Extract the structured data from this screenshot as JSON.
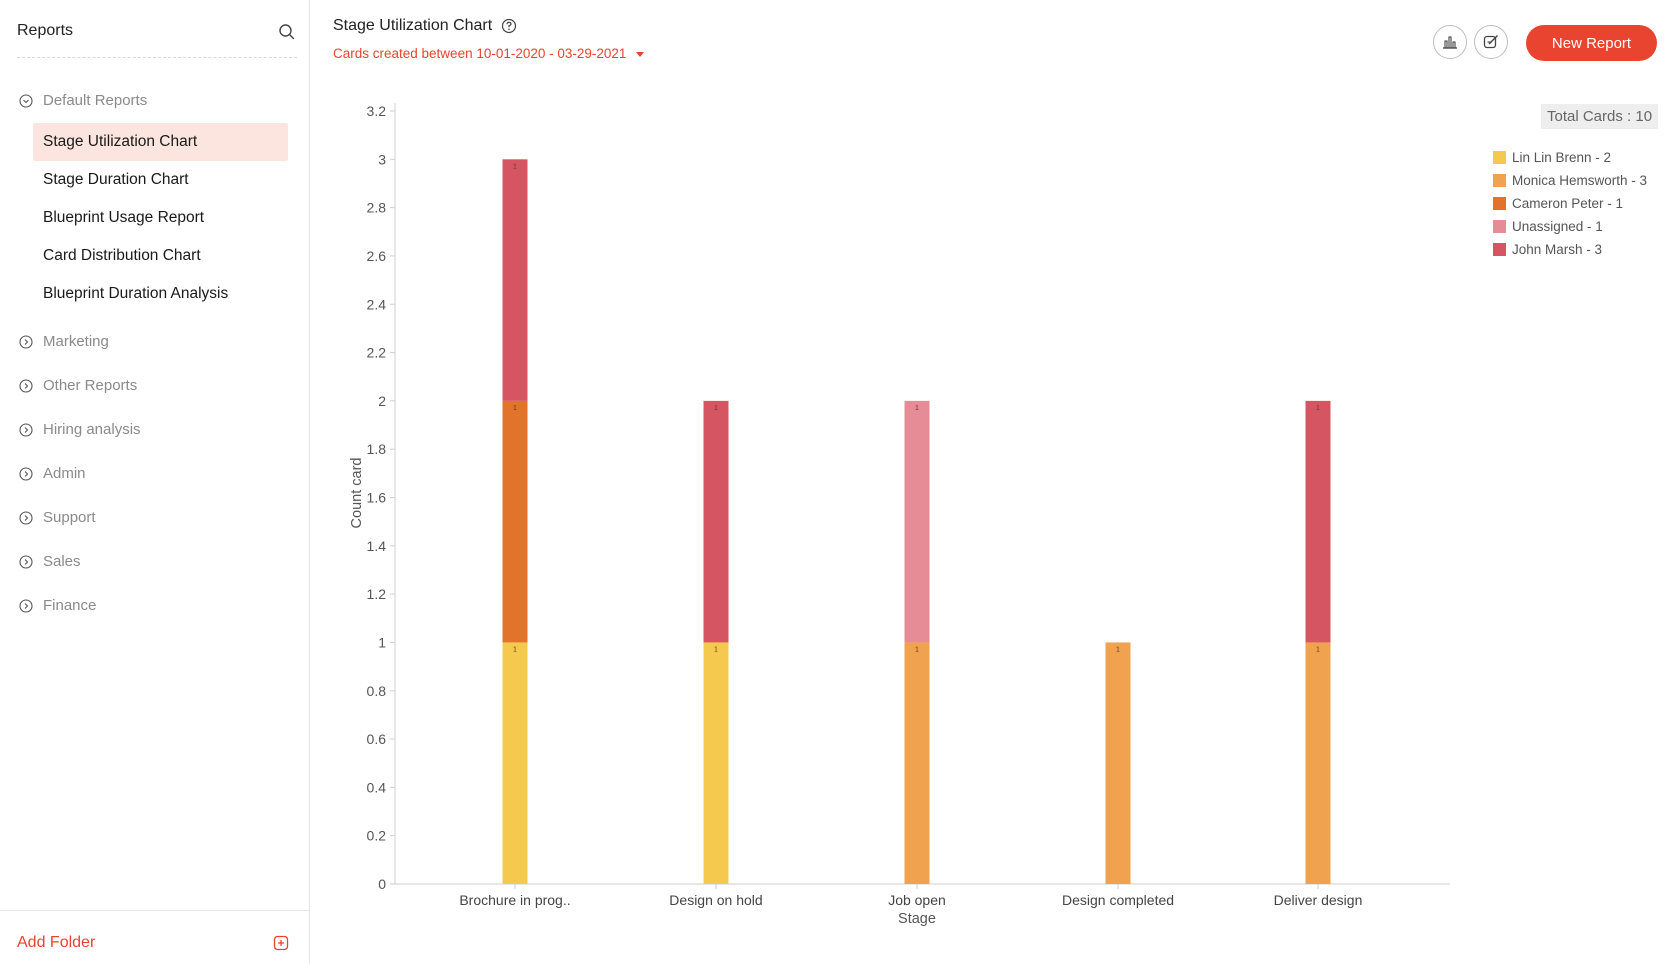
{
  "sidebar": {
    "title": "Reports",
    "default_folder": "Default Reports",
    "reports": [
      "Stage Utilization Chart",
      "Stage Duration Chart",
      "Blueprint Usage Report",
      "Card Distribution Chart",
      "Blueprint Duration Analysis"
    ],
    "folders": [
      "Marketing",
      "Other Reports",
      "Hiring analysis",
      "Admin",
      "Support",
      "Sales",
      "Finance"
    ],
    "add_folder": "Add Folder"
  },
  "header": {
    "title": "Stage Utilization Chart",
    "date_filter": "Cards created between 10-01-2020 - 03-29-2021",
    "new_report": "New Report"
  },
  "total_cards": "Total Cards : 10",
  "chart_data": {
    "type": "bar",
    "stacked": true,
    "title": "Stage Utilization Chart",
    "xlabel": "Stage",
    "ylabel": "Count card",
    "ylim": [
      0,
      3.2
    ],
    "yticks": [
      "0",
      "0.2",
      "0.4",
      "0.6",
      "0.8",
      "1",
      "1.2",
      "1.4",
      "1.6",
      "1.8",
      "2",
      "2.2",
      "2.4",
      "2.6",
      "2.8",
      "3",
      "3.2"
    ],
    "categories": [
      "Brochure in prog..",
      "Design on hold",
      "Job open",
      "Design completed",
      "Deliver design"
    ],
    "series": [
      {
        "name": "Lin Lin Brenn",
        "legend": "Lin Lin Brenn - 2",
        "color": "#f5c84e",
        "values": [
          1,
          1,
          0,
          0,
          0
        ]
      },
      {
        "name": "Monica Hemsworth",
        "legend": "Monica Hemsworth - 3",
        "color": "#f0a24f",
        "values": [
          0,
          0,
          1,
          1,
          1
        ]
      },
      {
        "name": "Cameron Peter",
        "legend": "Cameron Peter - 1",
        "color": "#e2732b",
        "values": [
          1,
          0,
          0,
          0,
          0
        ]
      },
      {
        "name": "Unassigned",
        "legend": "Unassigned - 1",
        "color": "#e58c96",
        "values": [
          0,
          0,
          1,
          0,
          0
        ]
      },
      {
        "name": "John Marsh",
        "legend": "John Marsh - 3",
        "color": "#d65562",
        "values": [
          1,
          1,
          0,
          0,
          1
        ]
      }
    ],
    "segment_label": "1"
  }
}
